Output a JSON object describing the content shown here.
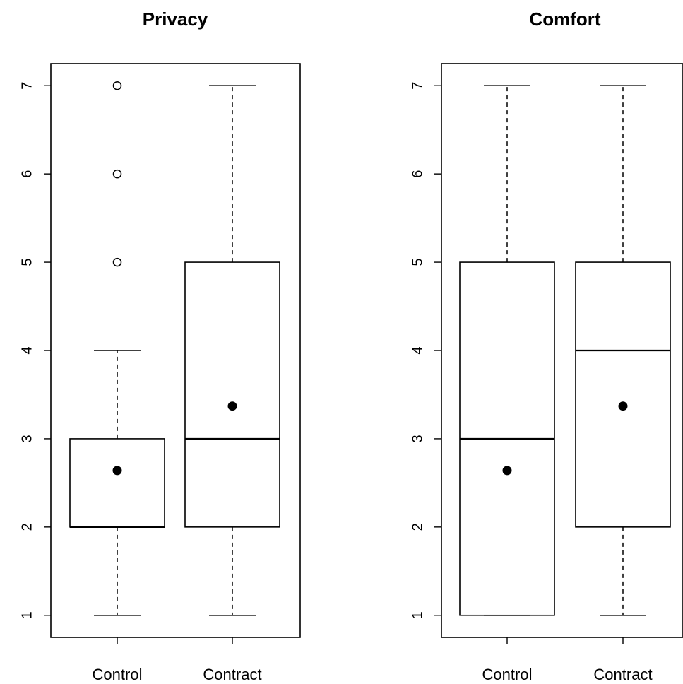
{
  "chart_data": [
    {
      "type": "box",
      "title": "Privacy",
      "categories": [
        "Control",
        "Contract"
      ],
      "ylim": [
        0.75,
        7.25
      ],
      "yticks": [
        "1",
        "2",
        "3",
        "4",
        "5",
        "6",
        "7"
      ],
      "boxes": [
        {
          "category": "Control",
          "whisker_low": 1,
          "q1": 2,
          "median": 2,
          "q3": 3,
          "whisker_high": 4,
          "mean": 2.64,
          "outliers": [
            5,
            6,
            7
          ]
        },
        {
          "category": "Contract",
          "whisker_low": 1,
          "q1": 2,
          "median": 3,
          "q3": 5,
          "whisker_high": 7,
          "mean": 3.37,
          "outliers": []
        }
      ]
    },
    {
      "type": "box",
      "title": "Comfort",
      "categories": [
        "Control",
        "Contract"
      ],
      "ylim": [
        0.75,
        7.25
      ],
      "yticks": [
        "1",
        "2",
        "3",
        "4",
        "5",
        "6",
        "7"
      ],
      "boxes": [
        {
          "category": "Control",
          "whisker_low": 1,
          "q1": 1,
          "median": 3,
          "q3": 5,
          "whisker_high": 7,
          "mean": 2.64,
          "outliers": []
        },
        {
          "category": "Contract",
          "whisker_low": 1,
          "q1": 2,
          "median": 4,
          "q3": 5,
          "whisker_high": 7,
          "mean": 3.37,
          "outliers": []
        }
      ]
    }
  ]
}
